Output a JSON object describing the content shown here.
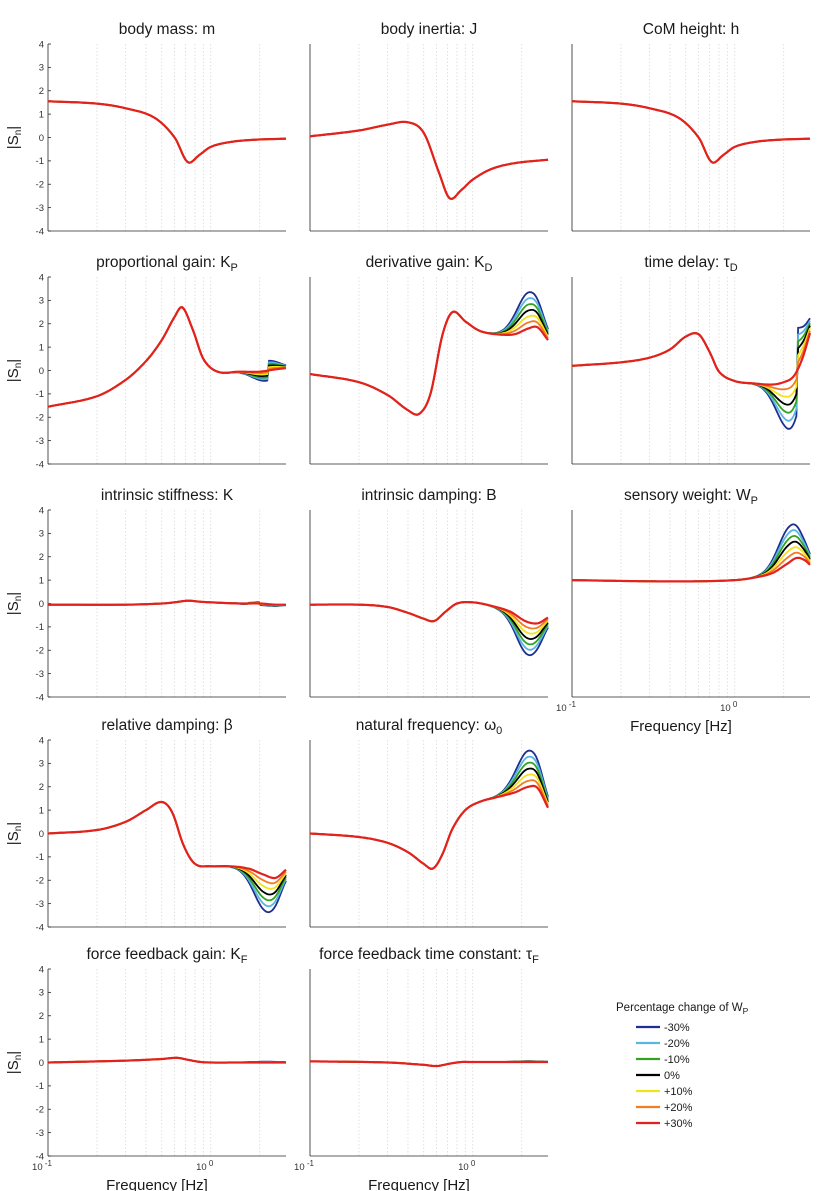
{
  "chart_data": {
    "type": "line",
    "figure": "Normalized sensitivity |Sn| versus frequency for each model parameter, for percentage changes of the sensory weight WP",
    "x_scale": "log",
    "xlim_hz": [
      0.1,
      2.9
    ],
    "xlabel": "Frequency [Hz]",
    "ylabel": "|Sn|",
    "ylim": [
      -4,
      4
    ],
    "yticks": [
      "4",
      "3",
      "2",
      "1",
      "0",
      "-1",
      "-2",
      "-3",
      "-4"
    ],
    "xticks": [
      {
        "value": 0.1,
        "label": "10",
        "exp": "-1"
      },
      {
        "value": 1.0,
        "label": "10",
        "exp": "0"
      }
    ],
    "legend": {
      "title": "Percentage change of W",
      "title_sub": "P",
      "placement": "bottom-right",
      "entries": [
        {
          "label": "-30%",
          "color": "#1f2f8f"
        },
        {
          "label": "-20%",
          "color": "#58b6e6"
        },
        {
          "label": "-10%",
          "color": "#35a321"
        },
        {
          "label": "0%",
          "color": "#000000"
        },
        {
          "label": "+10%",
          "color": "#f2e21a"
        },
        {
          "label": "+20%",
          "color": "#f07e22"
        },
        {
          "label": "+30%",
          "color": "#e3211d"
        }
      ]
    },
    "panels": [
      {
        "id": "body-mass",
        "title": "body mass: m",
        "title_sub": "",
        "x": [
          0.1,
          0.2,
          0.3,
          0.45,
          0.6,
          0.72,
          0.85,
          1.0,
          1.3,
          1.8,
          2.9
        ],
        "base": [
          1.55,
          1.45,
          1.25,
          0.85,
          0.0,
          -1.05,
          -0.75,
          -0.4,
          -0.2,
          -0.1,
          -0.05
        ],
        "spread": 0
      },
      {
        "id": "body-inertia",
        "title": "body inertia: J",
        "title_sub": "",
        "x": [
          0.1,
          0.2,
          0.3,
          0.4,
          0.5,
          0.62,
          0.72,
          0.85,
          1.0,
          1.3,
          1.8,
          2.9
        ],
        "base": [
          0.05,
          0.3,
          0.55,
          0.65,
          0.2,
          -1.5,
          -2.6,
          -2.25,
          -1.8,
          -1.35,
          -1.1,
          -0.95
        ],
        "spread": 0
      },
      {
        "id": "com-height",
        "title": "CoM height: h",
        "title_sub": "",
        "x": [
          0.1,
          0.2,
          0.3,
          0.45,
          0.6,
          0.72,
          0.85,
          1.0,
          1.3,
          1.8,
          2.9
        ],
        "base": [
          1.55,
          1.45,
          1.25,
          0.85,
          0.0,
          -1.05,
          -0.75,
          -0.4,
          -0.2,
          -0.1,
          -0.05
        ],
        "spread": 0
      },
      {
        "id": "proportional-gain",
        "title": "proportional gain: K",
        "title_sub": "P",
        "x": [
          0.1,
          0.2,
          0.3,
          0.4,
          0.5,
          0.6,
          0.67,
          0.78,
          0.9,
          1.1,
          1.5,
          2.0,
          2.5,
          2.9
        ],
        "base": [
          -1.55,
          -1.1,
          -0.4,
          0.4,
          1.3,
          2.3,
          2.7,
          1.7,
          0.5,
          -0.05,
          -0.05,
          -0.05,
          0.05,
          0.1
        ],
        "spread": 0.06
      },
      {
        "id": "derivative-gain",
        "title": "derivative gain: K",
        "title_sub": "D",
        "x": [
          0.1,
          0.2,
          0.3,
          0.4,
          0.47,
          0.55,
          0.65,
          0.75,
          0.9,
          1.1,
          1.4,
          1.8,
          2.2,
          2.5,
          2.9
        ],
        "base": [
          -0.15,
          -0.5,
          -1.05,
          -1.7,
          -1.85,
          -1.0,
          1.5,
          2.5,
          2.1,
          1.7,
          1.55,
          1.55,
          1.8,
          1.85,
          1.3
        ],
        "spread": 0.22
      },
      {
        "id": "time-delay",
        "title": "time delay:  τ",
        "title_sub": "D",
        "x": [
          0.1,
          0.2,
          0.3,
          0.4,
          0.5,
          0.6,
          0.7,
          0.8,
          1.0,
          1.3,
          1.7,
          2.0,
          2.3,
          2.6,
          2.9
        ],
        "base": [
          0.2,
          0.35,
          0.55,
          0.9,
          1.45,
          1.55,
          0.8,
          -0.05,
          -0.45,
          -0.55,
          -0.6,
          -0.5,
          -0.25,
          0.5,
          1.6
        ],
        "spread": 0.3
      },
      {
        "id": "intrinsic-stiffness",
        "title": "intrinsic stiffness: K",
        "title_sub": "",
        "x": [
          0.1,
          0.3,
          0.5,
          0.6,
          0.72,
          0.85,
          1.0,
          1.5,
          2.0,
          2.5,
          2.9
        ],
        "base": [
          -0.05,
          -0.05,
          0.0,
          0.05,
          0.12,
          0.08,
          0.05,
          0.0,
          0.0,
          -0.05,
          -0.05
        ],
        "spread": 0.01
      },
      {
        "id": "intrinsic-damping",
        "title": "intrinsic damping: B",
        "title_sub": "",
        "x": [
          0.1,
          0.2,
          0.3,
          0.4,
          0.5,
          0.58,
          0.68,
          0.8,
          1.0,
          1.3,
          1.7,
          2.1,
          2.5,
          2.9
        ],
        "base": [
          -0.05,
          -0.05,
          -0.15,
          -0.4,
          -0.65,
          -0.75,
          -0.35,
          0.0,
          0.05,
          -0.1,
          -0.35,
          -0.75,
          -0.85,
          -0.6
        ],
        "spread": 0.2
      },
      {
        "id": "sensory-weight",
        "title": "sensory weight: W",
        "title_sub": "P",
        "x": [
          0.1,
          0.3,
          0.6,
          1.0,
          1.3,
          1.7,
          2.1,
          2.4,
          2.7,
          2.9
        ],
        "base": [
          1.0,
          0.95,
          0.95,
          1.0,
          1.1,
          1.3,
          1.7,
          1.95,
          1.85,
          1.65
        ],
        "spread": 0.22
      },
      {
        "id": "relative-damping",
        "title": "relative damping:  β",
        "title_sub": "",
        "x": [
          0.1,
          0.2,
          0.3,
          0.4,
          0.5,
          0.58,
          0.68,
          0.8,
          1.0,
          1.3,
          1.7,
          2.1,
          2.5,
          2.9
        ],
        "base": [
          0.0,
          0.15,
          0.5,
          1.0,
          1.35,
          0.9,
          -0.5,
          -1.3,
          -1.4,
          -1.4,
          -1.5,
          -1.75,
          -1.9,
          -1.55
        ],
        "spread": 0.22
      },
      {
        "id": "natural-frequency",
        "title": "natural frequency:  ω",
        "title_sub": "0",
        "x": [
          0.1,
          0.2,
          0.3,
          0.4,
          0.5,
          0.57,
          0.65,
          0.75,
          0.9,
          1.1,
          1.4,
          1.8,
          2.2,
          2.5,
          2.9
        ],
        "base": [
          0.0,
          -0.15,
          -0.4,
          -0.8,
          -1.3,
          -1.5,
          -0.9,
          0.2,
          1.0,
          1.35,
          1.55,
          1.75,
          2.0,
          1.95,
          1.1
        ],
        "spread": 0.22
      },
      {
        "id": "force-feedback-gain",
        "title": "force feedback gain: K",
        "title_sub": "F",
        "x": [
          0.1,
          0.3,
          0.5,
          0.62,
          0.72,
          0.85,
          1.0,
          1.5,
          2.9
        ],
        "base": [
          0.0,
          0.08,
          0.15,
          0.2,
          0.12,
          0.03,
          0.0,
          0.0,
          0.0
        ],
        "spread": 0.005
      },
      {
        "id": "force-feedback-time-constant",
        "title": "force feedback time constant: τ",
        "title_sub": "F",
        "x": [
          0.1,
          0.3,
          0.5,
          0.6,
          0.72,
          0.85,
          1.0,
          1.5,
          2.9
        ],
        "base": [
          0.05,
          0.0,
          -0.1,
          -0.15,
          -0.05,
          0.02,
          0.02,
          0.02,
          0.02
        ],
        "spread": 0.005
      }
    ]
  }
}
